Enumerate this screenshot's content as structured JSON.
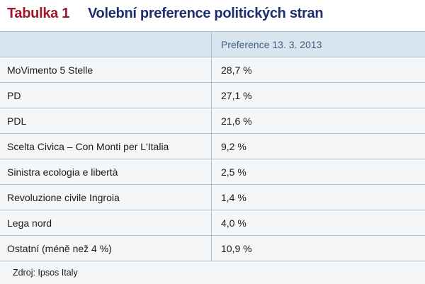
{
  "title": {
    "label": "Tabulka 1",
    "text": "Volební preference politických stran"
  },
  "table": {
    "columns": [
      "",
      "Preference 13. 3. 2013"
    ],
    "rows": [
      {
        "party": "MoVimento 5 Stelle",
        "value": "28,7 %"
      },
      {
        "party": "PD",
        "value": "27,1 %"
      },
      {
        "party": "PDL",
        "value": "21,6 %"
      },
      {
        "party": "Scelta Civica – Con Monti per L'Italia",
        "value": "9,2 %"
      },
      {
        "party": "Sinistra ecologia e libertà",
        "value": "2,5 %"
      },
      {
        "party": "Revoluzione civile Ingroia",
        "value": "1,4 %"
      },
      {
        "party": "Lega nord",
        "value": "4,0 %"
      },
      {
        "party": "Ostatní (méně než 4 %)",
        "value": "10,9 %"
      }
    ]
  },
  "source": "Zdroj: Ipsos Italy",
  "colors": {
    "title_label": "#a0192a",
    "title_text": "#1e2f6d",
    "header_bg": "#d8e4ee",
    "header_text": "#3d5f84",
    "body_bg": "#f4f6f8",
    "divider": "#b5c2ce"
  }
}
